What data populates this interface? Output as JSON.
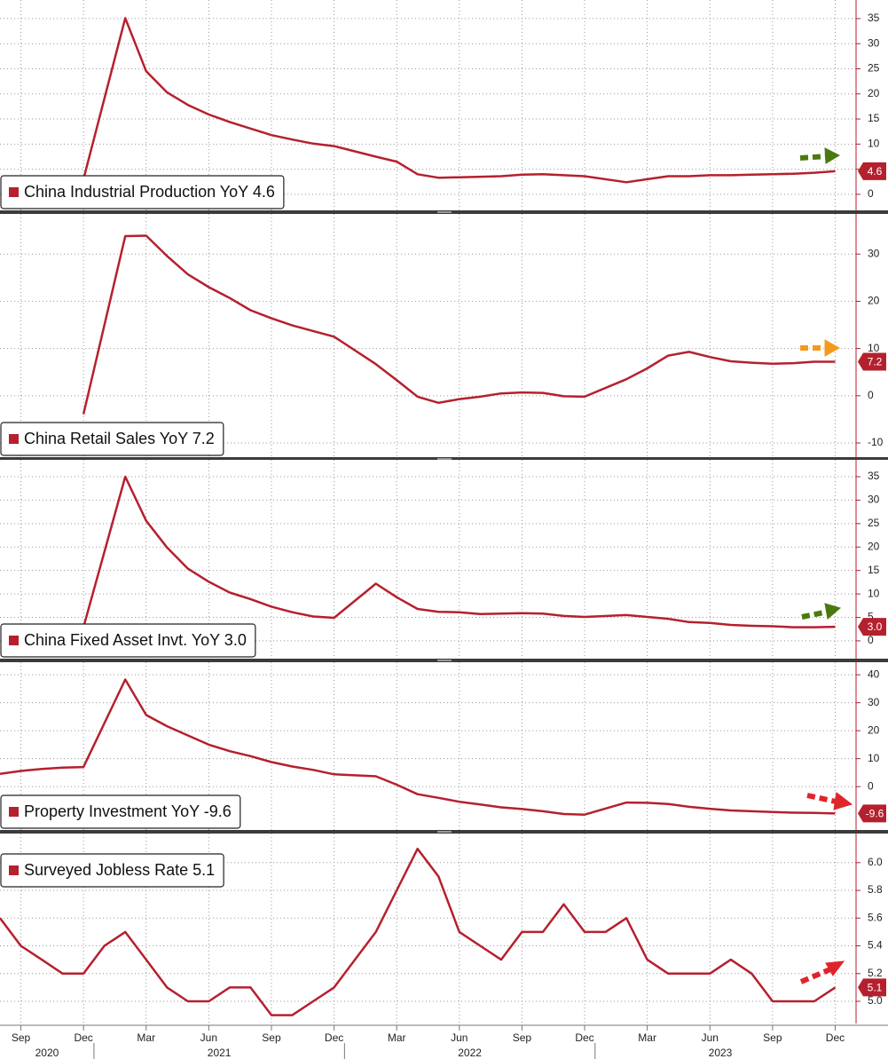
{
  "chart_data": [
    {
      "type": "line",
      "title": "China Industrial Production YoY 4.6",
      "color": "#b5202e",
      "legend": "lower left",
      "x": [
        "2020-12",
        "2021-02",
        "2021-03",
        "2021-04",
        "2021-05",
        "2021-06",
        "2021-07",
        "2021-08",
        "2021-09",
        "2021-10",
        "2021-11",
        "2021-12",
        "2022-02",
        "2022-03",
        "2022-04",
        "2022-05",
        "2022-06",
        "2022-07",
        "2022-08",
        "2022-09",
        "2022-10",
        "2022-11",
        "2022-12",
        "2023-02",
        "2023-03",
        "2023-04",
        "2023-05",
        "2023-06",
        "2023-07",
        "2023-08",
        "2023-09",
        "2023-10",
        "2023-11",
        "2023-12"
      ],
      "values": [
        3.0,
        35.1,
        24.5,
        20.3,
        17.8,
        15.9,
        14.4,
        13.1,
        11.8,
        10.9,
        10.1,
        9.6,
        7.5,
        6.5,
        4.0,
        3.3,
        3.4,
        3.5,
        3.6,
        3.9,
        4.0,
        3.8,
        3.6,
        2.4,
        3.0,
        3.6,
        3.6,
        3.8,
        3.8,
        3.9,
        4.0,
        4.1,
        4.3,
        4.6
      ],
      "xlim": [
        "2020-08",
        "2024-01"
      ],
      "ylim": [
        -3.2,
        38.7
      ],
      "yticks": [
        0,
        5,
        10,
        15,
        20,
        25,
        30,
        35
      ],
      "grid": true
    },
    {
      "type": "line",
      "title": "China Retail Sales YoY 7.2",
      "color": "#b5202e",
      "legend": "lower left",
      "x": [
        "2020-12",
        "2021-02",
        "2021-03",
        "2021-04",
        "2021-05",
        "2021-06",
        "2021-07",
        "2021-08",
        "2021-09",
        "2021-10",
        "2021-11",
        "2021-12",
        "2022-02",
        "2022-03",
        "2022-04",
        "2022-05",
        "2022-06",
        "2022-07",
        "2022-08",
        "2022-09",
        "2022-10",
        "2022-11",
        "2022-12",
        "2023-02",
        "2023-03",
        "2023-04",
        "2023-05",
        "2023-06",
        "2023-07",
        "2023-08",
        "2023-09",
        "2023-10",
        "2023-11",
        "2023-12"
      ],
      "values": [
        -3.9,
        33.8,
        33.9,
        29.6,
        25.7,
        23.0,
        20.7,
        18.1,
        16.4,
        14.9,
        13.7,
        12.5,
        6.7,
        3.3,
        -0.2,
        -1.5,
        -0.7,
        -0.2,
        0.5,
        0.7,
        0.6,
        -0.1,
        -0.2,
        3.5,
        5.8,
        8.5,
        9.3,
        8.2,
        7.3,
        7.0,
        6.8,
        6.9,
        7.2,
        7.2
      ],
      "xlim": [
        "2020-08",
        "2024-01"
      ],
      "ylim": [
        -13,
        38.5
      ],
      "yticks": [
        -10,
        0,
        10,
        20,
        30
      ],
      "grid": true
    },
    {
      "type": "line",
      "title": "China Fixed Asset Invt. YoY 3.0",
      "color": "#b5202e",
      "legend": "lower left",
      "x": [
        "2020-12",
        "2021-02",
        "2021-03",
        "2021-04",
        "2021-05",
        "2021-06",
        "2021-07",
        "2021-08",
        "2021-09",
        "2021-10",
        "2021-11",
        "2021-12",
        "2022-02",
        "2022-03",
        "2022-04",
        "2022-05",
        "2022-06",
        "2022-07",
        "2022-08",
        "2022-09",
        "2022-10",
        "2022-11",
        "2022-12",
        "2023-02",
        "2023-03",
        "2023-04",
        "2023-05",
        "2023-06",
        "2023-07",
        "2023-08",
        "2023-09",
        "2023-10",
        "2023-11",
        "2023-12"
      ],
      "values": [
        2.9,
        35.0,
        25.6,
        19.9,
        15.4,
        12.6,
        10.3,
        8.9,
        7.3,
        6.1,
        5.2,
        4.9,
        12.2,
        9.3,
        6.8,
        6.2,
        6.1,
        5.7,
        5.8,
        5.9,
        5.8,
        5.3,
        5.1,
        5.5,
        5.1,
        4.7,
        4.0,
        3.8,
        3.4,
        3.2,
        3.1,
        2.9,
        2.9,
        3.0
      ],
      "value_labels": [
        null,
        null,
        null,
        null,
        null,
        null,
        null,
        null,
        null,
        null,
        null,
        null,
        null,
        null,
        null,
        null,
        null,
        null,
        null,
        null,
        null,
        null,
        null,
        null,
        null,
        null,
        null,
        null,
        null,
        null,
        null,
        null,
        null,
        "3.0"
      ],
      "xlim": [
        "2020-08",
        "2024-01"
      ],
      "ylim": [
        -3.8,
        38.6
      ],
      "yticks": [
        0,
        5,
        10,
        15,
        20,
        25,
        30,
        35
      ],
      "grid": true
    },
    {
      "type": "line",
      "title": "Property Investment YoY -9.6",
      "color": "#b5202e",
      "legend": "lower left",
      "x": [
        "2020-08",
        "2020-09",
        "2020-10",
        "2020-11",
        "2020-12",
        "2021-02",
        "2021-03",
        "2021-04",
        "2021-05",
        "2021-06",
        "2021-07",
        "2021-08",
        "2021-09",
        "2021-10",
        "2021-11",
        "2021-12",
        "2022-02",
        "2022-03",
        "2022-04",
        "2022-05",
        "2022-06",
        "2022-07",
        "2022-08",
        "2022-09",
        "2022-10",
        "2022-11",
        "2022-12",
        "2023-02",
        "2023-03",
        "2023-04",
        "2023-05",
        "2023-06",
        "2023-07",
        "2023-08",
        "2023-09",
        "2023-10",
        "2023-11",
        "2023-12"
      ],
      "values": [
        4.6,
        5.6,
        6.3,
        6.8,
        7.0,
        38.3,
        25.6,
        21.6,
        18.3,
        15.0,
        12.7,
        10.9,
        8.8,
        7.2,
        6.0,
        4.4,
        3.7,
        0.7,
        -2.7,
        -4.0,
        -5.4,
        -6.4,
        -7.4,
        -8.0,
        -8.8,
        -9.8,
        -10.0,
        -5.7,
        -5.8,
        -6.2,
        -7.2,
        -7.9,
        -8.5,
        -8.8,
        -9.1,
        -9.3,
        -9.4,
        -9.6
      ],
      "xlim": [
        "2020-08",
        "2024-01"
      ],
      "ylim": [
        -15.5,
        44.5
      ],
      "yticks": [
        0,
        10,
        20,
        30,
        40
      ],
      "grid": true
    },
    {
      "type": "line",
      "title": "Surveyed Jobless Rate 5.1",
      "color": "#b5202e",
      "legend": "upper left",
      "x": [
        "2020-08",
        "2020-09",
        "2020-10",
        "2020-11",
        "2020-12",
        "2021-01",
        "2021-02",
        "2021-03",
        "2021-04",
        "2021-05",
        "2021-06",
        "2021-07",
        "2021-08",
        "2021-09",
        "2021-10",
        "2021-11",
        "2021-12",
        "2022-01",
        "2022-02",
        "2022-03",
        "2022-04",
        "2022-05",
        "2022-06",
        "2022-07",
        "2022-08",
        "2022-09",
        "2022-10",
        "2022-11",
        "2022-12",
        "2023-01",
        "2023-02",
        "2023-03",
        "2023-04",
        "2023-05",
        "2023-06",
        "2023-07",
        "2023-08",
        "2023-09",
        "2023-10",
        "2023-11",
        "2023-12"
      ],
      "values": [
        5.6,
        5.4,
        5.3,
        5.2,
        5.2,
        5.4,
        5.5,
        5.3,
        5.1,
        5.0,
        5.0,
        5.1,
        5.1,
        4.9,
        4.9,
        5.0,
        5.1,
        5.3,
        5.5,
        5.8,
        6.1,
        5.9,
        5.5,
        5.4,
        5.3,
        5.5,
        5.5,
        5.7,
        5.5,
        5.5,
        5.6,
        5.3,
        5.2,
        5.2,
        5.2,
        5.3,
        5.2,
        5.0,
        5.0,
        5.0,
        5.1
      ],
      "xlim": [
        "2020-08",
        "2024-01"
      ],
      "ylim": [
        4.84,
        6.21
      ],
      "yticks": [
        {
          "value": 5,
          "label": "5.0"
        },
        5.2,
        5.4,
        5.6,
        5.8,
        {
          "value": 6,
          "label": "6.0"
        }
      ],
      "grid": true,
      "xticks": [
        {
          "value": "2020-09",
          "label": "Sep"
        },
        {
          "value": "2020-12",
          "label": "Dec"
        },
        {
          "value": "2021-03",
          "label": "Mar"
        },
        {
          "value": "2021-06",
          "label": "Jun"
        },
        {
          "value": "2021-09",
          "label": "Sep"
        },
        {
          "value": "2021-12",
          "label": "Dec"
        },
        {
          "value": "2022-03",
          "label": "Mar"
        },
        {
          "value": "2022-06",
          "label": "Jun"
        },
        {
          "value": "2022-09",
          "label": "Sep"
        },
        {
          "value": "2022-12",
          "label": "Dec"
        },
        {
          "value": "2023-03",
          "label": "Mar"
        },
        {
          "value": "2023-06",
          "label": "Jun"
        },
        {
          "value": "2023-09",
          "label": "Sep"
        },
        {
          "value": "2023-12",
          "label": "Dec"
        }
      ],
      "year_ticks": [
        2020,
        2021,
        2022,
        2023
      ]
    }
  ]
}
